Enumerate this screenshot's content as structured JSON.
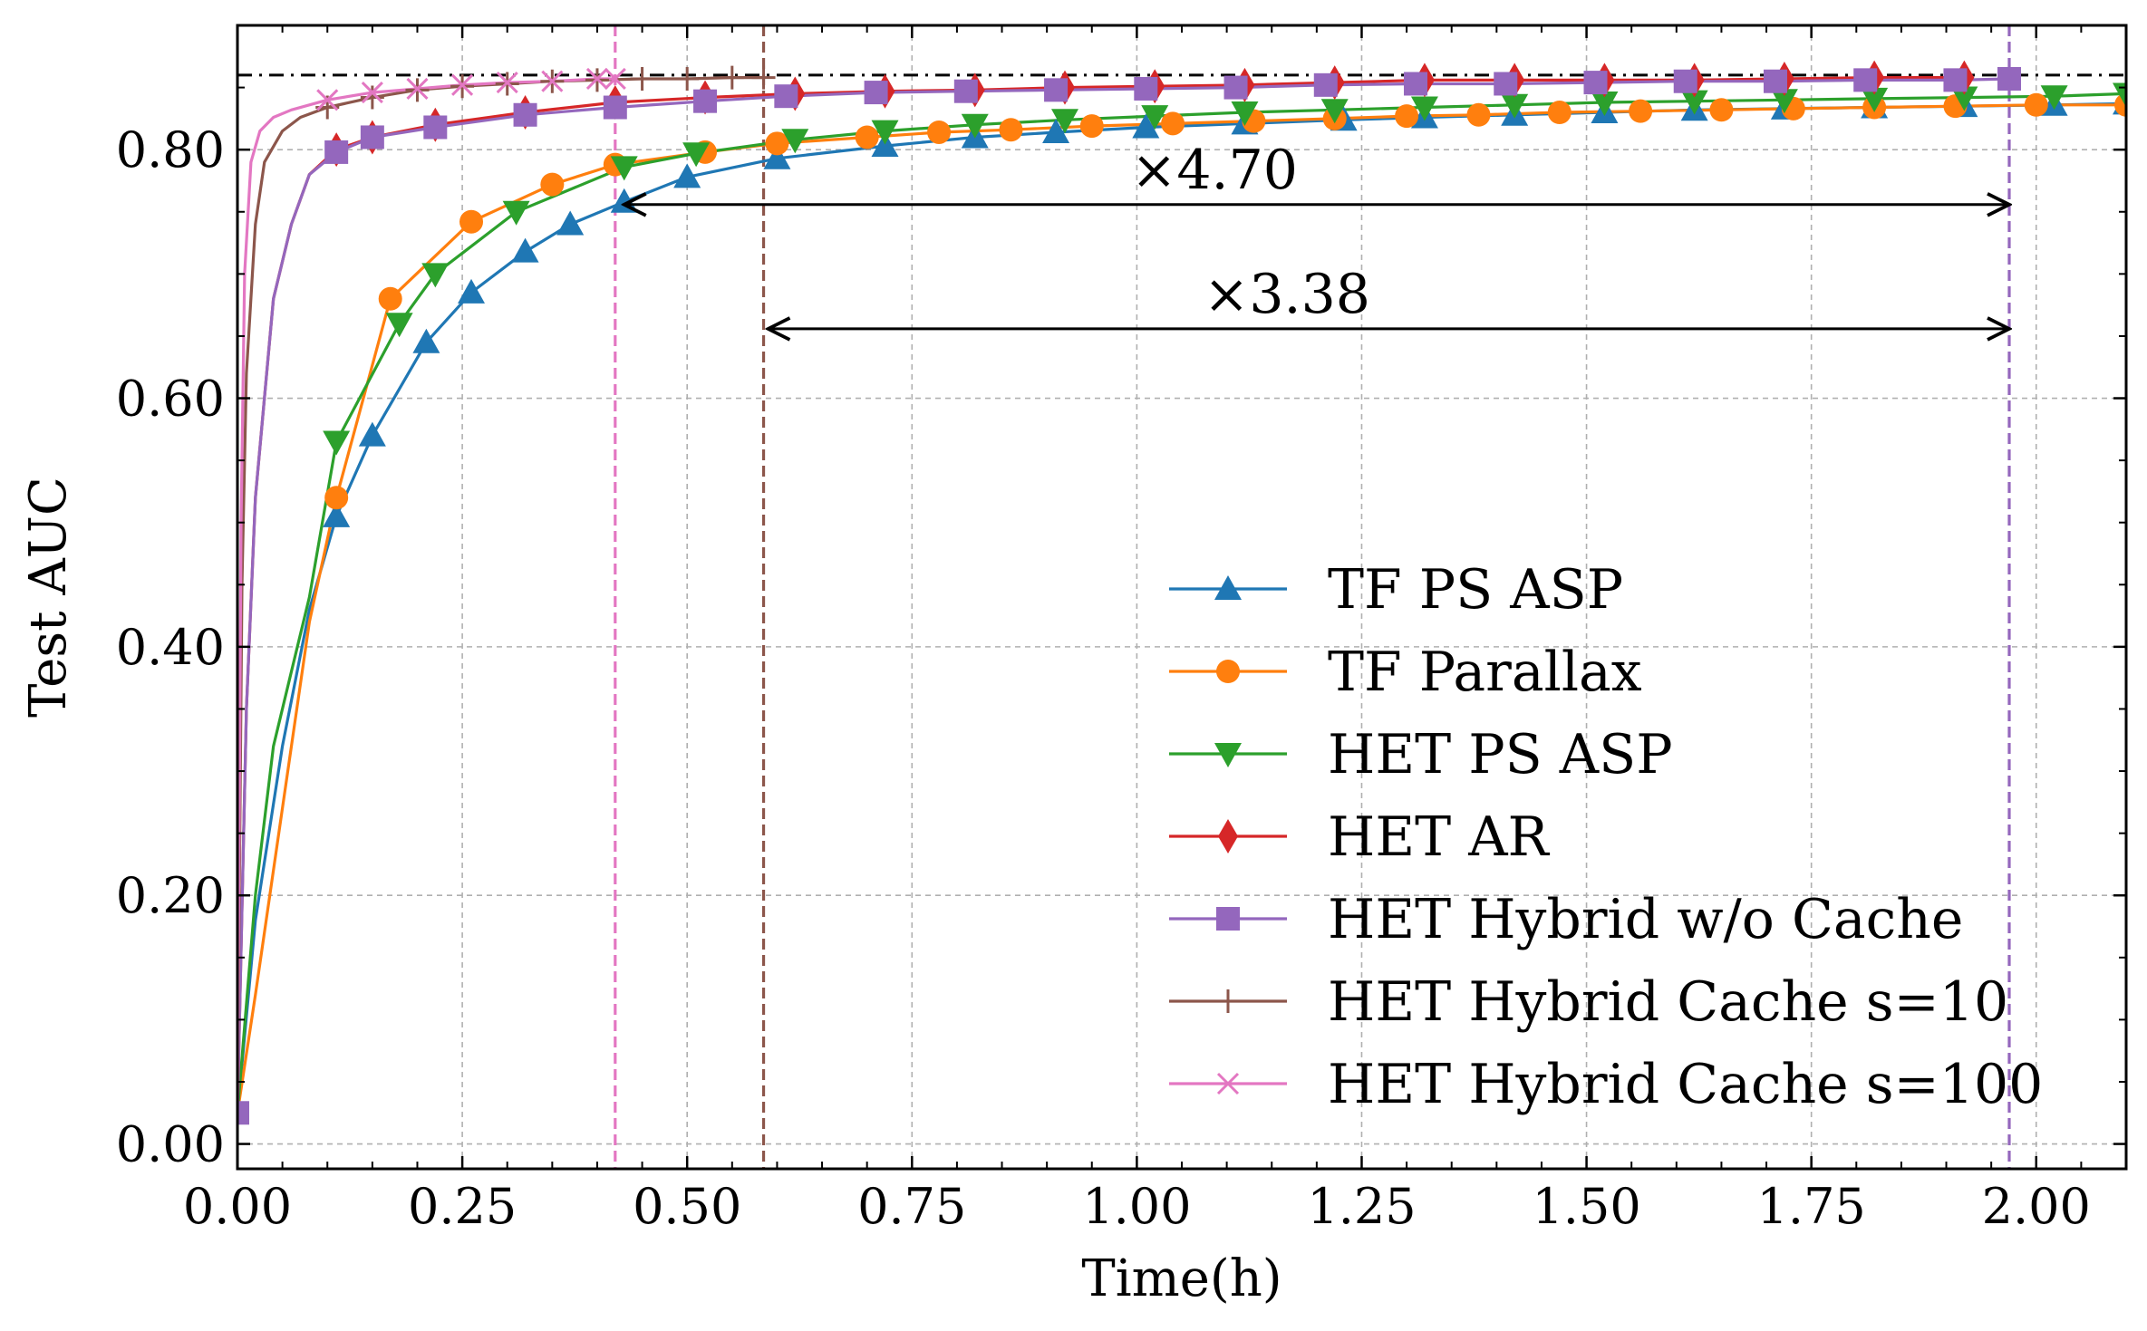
{
  "chart_data": {
    "type": "line",
    "title": "",
    "xlabel": "Time(h)",
    "ylabel": "Test AUC",
    "xlim": [
      0.0,
      2.1
    ],
    "ylim": [
      -0.02,
      0.9
    ],
    "grid": true,
    "legend_position": "bottom-right",
    "x_ticks": [
      0.0,
      0.25,
      0.5,
      0.75,
      1.0,
      1.25,
      1.5,
      1.75,
      2.0
    ],
    "x_tick_labels": [
      "0.00",
      "0.25",
      "0.50",
      "0.75",
      "1.00",
      "1.25",
      "1.50",
      "1.75",
      "2.00"
    ],
    "y_ticks": [
      0.0,
      0.2,
      0.4,
      0.6,
      0.8
    ],
    "y_tick_labels": [
      "0.00",
      "0.20",
      "0.40",
      "0.60",
      "0.80"
    ],
    "reference_line": {
      "y": 0.86,
      "style": "dash-dot",
      "color": "#000000"
    },
    "vertical_lines": [
      {
        "x": 0.42,
        "color": "#e377c2"
      },
      {
        "x": 0.585,
        "color": "#8c564b"
      },
      {
        "x": 1.97,
        "color": "#9467bd"
      }
    ],
    "annotations": [
      {
        "text": "×4.70",
        "from": 0.43,
        "to": 1.97,
        "y": 0.75
      },
      {
        "text": "×3.38",
        "from": 0.59,
        "to": 1.97,
        "y": 0.65
      }
    ],
    "series": [
      {
        "name": "TF PS ASP",
        "color": "#1f77b4",
        "marker": "triangle-up",
        "x": [
          0.0,
          0.02,
          0.05,
          0.08,
          0.11,
          0.15,
          0.21,
          0.26,
          0.32,
          0.37,
          0.43,
          0.5,
          0.6,
          0.72,
          0.82,
          0.91,
          1.01,
          1.12,
          1.23,
          1.32,
          1.42,
          1.52,
          1.62,
          1.72,
          1.82,
          1.92,
          2.02,
          2.1
        ],
        "y": [
          0.025,
          0.18,
          0.32,
          0.43,
          0.505,
          0.57,
          0.645,
          0.685,
          0.718,
          0.74,
          0.758,
          0.778,
          0.793,
          0.803,
          0.81,
          0.814,
          0.818,
          0.821,
          0.824,
          0.826,
          0.828,
          0.83,
          0.832,
          0.833,
          0.834,
          0.835,
          0.836,
          0.837
        ]
      },
      {
        "name": "TF Parallax",
        "color": "#ff7f0e",
        "marker": "circle",
        "x": [
          0.0,
          0.02,
          0.05,
          0.08,
          0.11,
          0.17,
          0.26,
          0.35,
          0.42,
          0.52,
          0.6,
          0.7,
          0.78,
          0.86,
          0.95,
          1.04,
          1.13,
          1.22,
          1.3,
          1.38,
          1.47,
          1.56,
          1.65,
          1.73,
          1.82,
          1.91,
          2.0,
          2.1
        ],
        "y": [
          0.025,
          0.12,
          0.27,
          0.42,
          0.52,
          0.68,
          0.742,
          0.772,
          0.788,
          0.798,
          0.805,
          0.81,
          0.814,
          0.816,
          0.819,
          0.821,
          0.823,
          0.825,
          0.827,
          0.828,
          0.83,
          0.831,
          0.832,
          0.833,
          0.834,
          0.835,
          0.836,
          0.836
        ]
      },
      {
        "name": "HET PS ASP",
        "color": "#2ca02c",
        "marker": "triangle-down",
        "x": [
          0.0,
          0.02,
          0.04,
          0.06,
          0.08,
          0.11,
          0.18,
          0.22,
          0.31,
          0.43,
          0.51,
          0.62,
          0.72,
          0.82,
          0.92,
          1.02,
          1.12,
          1.22,
          1.32,
          1.42,
          1.52,
          1.62,
          1.72,
          1.82,
          1.92,
          2.02,
          2.1
        ],
        "y": [
          0.025,
          0.2,
          0.32,
          0.38,
          0.44,
          0.565,
          0.66,
          0.7,
          0.75,
          0.786,
          0.797,
          0.808,
          0.815,
          0.82,
          0.824,
          0.827,
          0.83,
          0.832,
          0.834,
          0.836,
          0.838,
          0.839,
          0.84,
          0.841,
          0.842,
          0.843,
          0.845
        ]
      },
      {
        "name": "HET AR",
        "color": "#d62728",
        "marker": "diamond",
        "x": [
          0.0,
          0.01,
          0.02,
          0.04,
          0.06,
          0.08,
          0.11,
          0.15,
          0.22,
          0.32,
          0.42,
          0.52,
          0.62,
          0.72,
          0.82,
          0.92,
          1.02,
          1.12,
          1.22,
          1.32,
          1.42,
          1.52,
          1.62,
          1.72,
          1.82,
          1.92
        ],
        "y": [
          0.025,
          0.35,
          0.52,
          0.68,
          0.74,
          0.78,
          0.8,
          0.81,
          0.82,
          0.83,
          0.838,
          0.842,
          0.845,
          0.847,
          0.848,
          0.85,
          0.851,
          0.852,
          0.854,
          0.856,
          0.856,
          0.856,
          0.856,
          0.857,
          0.858,
          0.858
        ]
      },
      {
        "name": "HET Hybrid w/o Cache",
        "color": "#9467bd",
        "marker": "square",
        "x": [
          0.0,
          0.01,
          0.02,
          0.04,
          0.06,
          0.08,
          0.11,
          0.15,
          0.22,
          0.32,
          0.42,
          0.52,
          0.61,
          0.71,
          0.81,
          0.91,
          1.01,
          1.11,
          1.21,
          1.31,
          1.41,
          1.51,
          1.61,
          1.71,
          1.81,
          1.91,
          1.97
        ],
        "y": [
          0.025,
          0.35,
          0.52,
          0.68,
          0.74,
          0.78,
          0.798,
          0.81,
          0.818,
          0.828,
          0.834,
          0.839,
          0.843,
          0.846,
          0.847,
          0.848,
          0.849,
          0.85,
          0.852,
          0.853,
          0.853,
          0.854,
          0.855,
          0.855,
          0.856,
          0.856,
          0.857
        ]
      },
      {
        "name": "HET Hybrid Cache s=10",
        "color": "#8c564b",
        "marker": "plus",
        "x": [
          0.0,
          0.005,
          0.01,
          0.02,
          0.03,
          0.05,
          0.07,
          0.1,
          0.15,
          0.2,
          0.25,
          0.3,
          0.35,
          0.4,
          0.45,
          0.5,
          0.55,
          0.585
        ],
        "y": [
          0.025,
          0.45,
          0.62,
          0.74,
          0.79,
          0.815,
          0.826,
          0.834,
          0.842,
          0.848,
          0.851,
          0.853,
          0.855,
          0.856,
          0.857,
          0.857,
          0.858,
          0.858
        ]
      },
      {
        "name": "HET Hybrid Cache s=100",
        "color": "#e377c2",
        "marker": "x",
        "x": [
          0.0,
          0.004,
          0.008,
          0.015,
          0.025,
          0.04,
          0.06,
          0.1,
          0.15,
          0.2,
          0.25,
          0.3,
          0.35,
          0.4,
          0.42
        ],
        "y": [
          0.025,
          0.5,
          0.7,
          0.79,
          0.815,
          0.826,
          0.832,
          0.84,
          0.846,
          0.849,
          0.852,
          0.854,
          0.855,
          0.857,
          0.857
        ]
      }
    ]
  }
}
